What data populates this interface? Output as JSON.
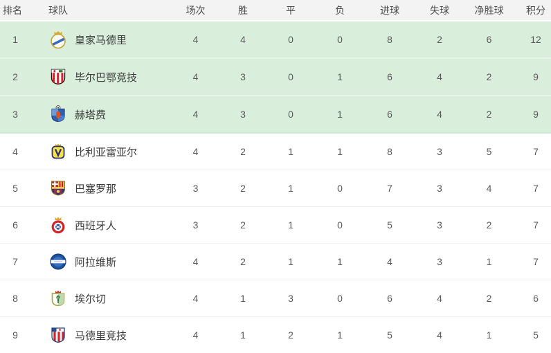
{
  "table": {
    "title": "league-standings",
    "headers": [
      {
        "key": "rank",
        "label": "排名"
      },
      {
        "key": "team",
        "label": "球队"
      },
      {
        "key": "played",
        "label": "场次"
      },
      {
        "key": "win",
        "label": "胜"
      },
      {
        "key": "draw",
        "label": "平"
      },
      {
        "key": "loss",
        "label": "负"
      },
      {
        "key": "goals_for",
        "label": "进球"
      },
      {
        "key": "goals_against",
        "label": "失球"
      },
      {
        "key": "goal_diff",
        "label": "净胜球"
      },
      {
        "key": "points",
        "label": "积分"
      }
    ],
    "teams": [
      {
        "rank": 1,
        "name": "皇家马德里",
        "logo": "real-madrid-crest",
        "highlighted": true,
        "played": 4,
        "win": 4,
        "draw": 0,
        "loss": 0,
        "goals_for": 8,
        "goals_against": 2,
        "goal_diff": 6,
        "points": 12
      },
      {
        "rank": 2,
        "name": "毕尔巴鄂竞技",
        "logo": "athletic-bilbao-crest",
        "highlighted": true,
        "played": 4,
        "win": 3,
        "draw": 0,
        "loss": 1,
        "goals_for": 6,
        "goals_against": 4,
        "goal_diff": 2,
        "points": 9
      },
      {
        "rank": 3,
        "name": "赫塔费",
        "logo": "getafe-crest",
        "highlighted": true,
        "played": 4,
        "win": 3,
        "draw": 0,
        "loss": 1,
        "goals_for": 6,
        "goals_against": 4,
        "goal_diff": 2,
        "points": 9
      },
      {
        "rank": 4,
        "name": "比利亚雷亚尔",
        "logo": "villarreal-crest",
        "highlighted": false,
        "played": 4,
        "win": 2,
        "draw": 1,
        "loss": 1,
        "goals_for": 8,
        "goals_against": 3,
        "goal_diff": 5,
        "points": 7
      },
      {
        "rank": 5,
        "name": "巴塞罗那",
        "logo": "barcelona-crest",
        "highlighted": false,
        "played": 3,
        "win": 2,
        "draw": 1,
        "loss": 0,
        "goals_for": 7,
        "goals_against": 3,
        "goal_diff": 4,
        "points": 7
      },
      {
        "rank": 6,
        "name": "西班牙人",
        "logo": "espanyol-crest",
        "highlighted": false,
        "played": 3,
        "win": 2,
        "draw": 1,
        "loss": 0,
        "goals_for": 5,
        "goals_against": 3,
        "goal_diff": 2,
        "points": 7
      },
      {
        "rank": 7,
        "name": "阿拉维斯",
        "logo": "alaves-crest",
        "highlighted": false,
        "played": 4,
        "win": 2,
        "draw": 1,
        "loss": 1,
        "goals_for": 4,
        "goals_against": 3,
        "goal_diff": 1,
        "points": 7
      },
      {
        "rank": 8,
        "name": "埃尔切",
        "logo": "elche-crest",
        "highlighted": false,
        "played": 4,
        "win": 1,
        "draw": 3,
        "loss": 0,
        "goals_for": 6,
        "goals_against": 4,
        "goal_diff": 2,
        "points": 6
      },
      {
        "rank": 9,
        "name": "马德里竞技",
        "logo": "atletico-madrid-crest",
        "highlighted": false,
        "played": 4,
        "win": 1,
        "draw": 2,
        "loss": 1,
        "goals_for": 5,
        "goals_against": 4,
        "goal_diff": 1,
        "points": 5
      }
    ]
  },
  "colors": {
    "highlight_row_bg": "#d9efdb",
    "highlight_row_divider": "#e8f5ea",
    "header_bg": "#f3f3f3",
    "header_text": "#4c4c4c",
    "row_divider": "#efefef",
    "cell_text": "#5a5a5a",
    "team_text": "#3c3c3c"
  }
}
